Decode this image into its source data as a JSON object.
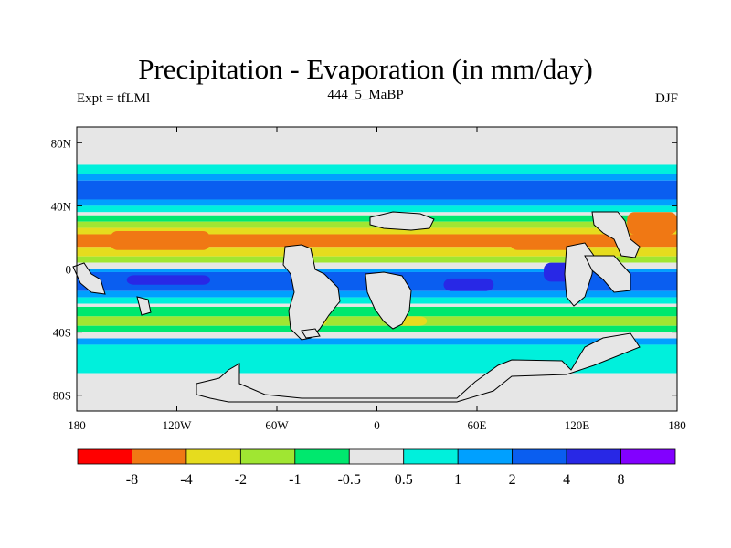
{
  "title": "Precipitation - Evaporation (in mm/day)",
  "left_label": "Expt = tfLMl",
  "center_label": "444_5_MaBP",
  "right_label": "DJF",
  "map": {
    "lon_ticks": [
      {
        "lon": -180,
        "label": "180"
      },
      {
        "lon": -120,
        "label": "120W"
      },
      {
        "lon": -60,
        "label": "60W"
      },
      {
        "lon": 0,
        "label": "0"
      },
      {
        "lon": 60,
        "label": "60E"
      },
      {
        "lon": 120,
        "label": "120E"
      },
      {
        "lon": 180,
        "label": "180"
      }
    ],
    "lat_ticks": [
      {
        "lat": 80,
        "label": "80N"
      },
      {
        "lat": 40,
        "label": "40N"
      },
      {
        "lat": 0,
        "label": "0"
      },
      {
        "lat": -40,
        "label": "40S"
      },
      {
        "lat": -80,
        "label": "80S"
      }
    ],
    "lon_range": [
      -180,
      180
    ],
    "lat_range": [
      -90,
      90
    ],
    "bands": [
      {
        "lat": [
          90,
          66
        ],
        "color": "#e6e6e6"
      },
      {
        "lat": [
          66,
          60
        ],
        "color": "#00f0dc"
      },
      {
        "lat": [
          60,
          56
        ],
        "color": "#00a0ff"
      },
      {
        "lat": [
          56,
          44
        ],
        "color": "#0a5ef0"
      },
      {
        "lat": [
          44,
          40
        ],
        "color": "#00a0ff"
      },
      {
        "lat": [
          40,
          36
        ],
        "color": "#00f0dc"
      },
      {
        "lat": [
          36,
          34
        ],
        "color": "#e6e6e6"
      },
      {
        "lat": [
          34,
          30
        ],
        "color": "#00e86e"
      },
      {
        "lat": [
          30,
          26
        ],
        "color": "#a0e632"
      },
      {
        "lat": [
          26,
          22
        ],
        "color": "#e6dc1e"
      },
      {
        "lat": [
          22,
          14
        ],
        "color": "#f07814"
      },
      {
        "lat": [
          14,
          8
        ],
        "color": "#e6dc1e"
      },
      {
        "lat": [
          8,
          4
        ],
        "color": "#a0e632"
      },
      {
        "lat": [
          4,
          0
        ],
        "color": "#e6e6e6"
      },
      {
        "lat": [
          0,
          -2
        ],
        "color": "#00a0ff"
      },
      {
        "lat": [
          -2,
          -14
        ],
        "color": "#0a5ef0"
      },
      {
        "lat": [
          -14,
          -18
        ],
        "color": "#00a0ff"
      },
      {
        "lat": [
          -18,
          -22
        ],
        "color": "#00f0dc"
      },
      {
        "lat": [
          -22,
          -24
        ],
        "color": "#e6e6e6"
      },
      {
        "lat": [
          -24,
          -30
        ],
        "color": "#00e86e"
      },
      {
        "lat": [
          -30,
          -36
        ],
        "color": "#a0e632"
      },
      {
        "lat": [
          -36,
          -40
        ],
        "color": "#00e86e"
      },
      {
        "lat": [
          -40,
          -44
        ],
        "color": "#e6e6e6"
      },
      {
        "lat": [
          -44,
          -48
        ],
        "color": "#00a0ff"
      },
      {
        "lat": [
          -48,
          -66
        ],
        "color": "#00f0dc"
      },
      {
        "lat": [
          -66,
          -90
        ],
        "color": "#e6e6e6"
      }
    ],
    "patches": [
      {
        "lon": [
          -160,
          -100
        ],
        "lat": [
          24,
          12
        ],
        "color": "#f07814"
      },
      {
        "lon": [
          -40,
          0
        ],
        "lat": [
          22,
          16
        ],
        "color": "#f07814"
      },
      {
        "lon": [
          80,
          120
        ],
        "lat": [
          20,
          12
        ],
        "color": "#f07814"
      },
      {
        "lon": [
          150,
          180
        ],
        "lat": [
          36,
          22
        ],
        "color": "#f07814"
      },
      {
        "lon": [
          -150,
          -100
        ],
        "lat": [
          -4,
          -10
        ],
        "color": "#2828e6"
      },
      {
        "lon": [
          40,
          70
        ],
        "lat": [
          -6,
          -14
        ],
        "color": "#2828e6"
      },
      {
        "lon": [
          100,
          125
        ],
        "lat": [
          4,
          -8
        ],
        "color": "#2828e6"
      },
      {
        "lon": [
          -50,
          -30
        ],
        "lat": [
          -30,
          -36
        ],
        "color": "#e6dc1e"
      },
      {
        "lon": [
          10,
          30
        ],
        "lat": [
          -30,
          -36
        ],
        "color": "#e6dc1e"
      }
    ]
  },
  "colorbar": {
    "colors": [
      "#ff0000",
      "#f07814",
      "#e6dc1e",
      "#a0e632",
      "#00e86e",
      "#e6e6e6",
      "#00f0dc",
      "#00a0ff",
      "#0a5ef0",
      "#2828e6",
      "#8200ff"
    ],
    "labels": [
      "-8",
      "-4",
      "-2",
      "-1",
      "-0.5",
      "0.5",
      "1",
      "2",
      "4",
      "8"
    ]
  }
}
